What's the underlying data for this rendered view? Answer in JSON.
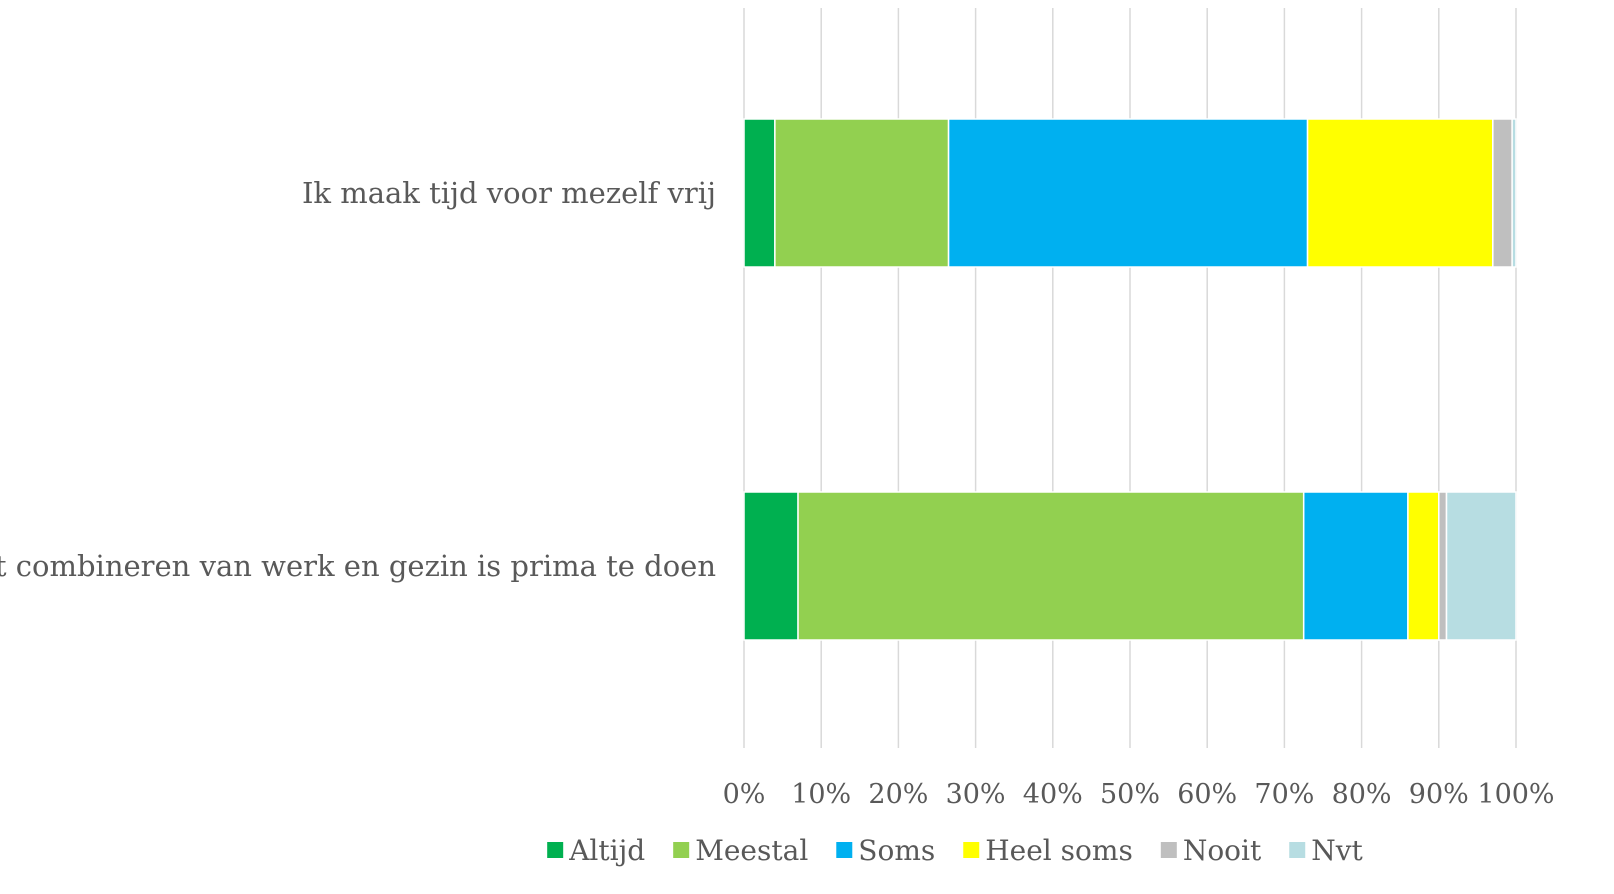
{
  "chart_data": {
    "type": "bar",
    "orientation": "horizontal",
    "stacked": "percent",
    "categories": [
      "Ik maak tijd voor mezelf vrij",
      "Het combineren van werk en gezin is prima te doen"
    ],
    "series": [
      {
        "name": "Altijd",
        "color": "#00b050",
        "values": [
          4,
          7
        ]
      },
      {
        "name": "Meestal",
        "color": "#92d050",
        "values": [
          22.5,
          65.5
        ]
      },
      {
        "name": "Soms",
        "color": "#00b0f0",
        "values": [
          46.5,
          13.5
        ]
      },
      {
        "name": "Heel soms",
        "color": "#ffff00",
        "values": [
          24,
          4
        ]
      },
      {
        "name": "Nooit",
        "color": "#bfbfbf",
        "values": [
          2.5,
          1
        ]
      },
      {
        "name": "Nvt",
        "color": "#b7dde2",
        "values": [
          0.5,
          9
        ]
      }
    ],
    "xlim": [
      0,
      100
    ],
    "x_ticks": [
      "0%",
      "10%",
      "20%",
      "30%",
      "40%",
      "50%",
      "60%",
      "70%",
      "80%",
      "90%",
      "100%"
    ],
    "grid": true,
    "legend_position": "bottom"
  }
}
